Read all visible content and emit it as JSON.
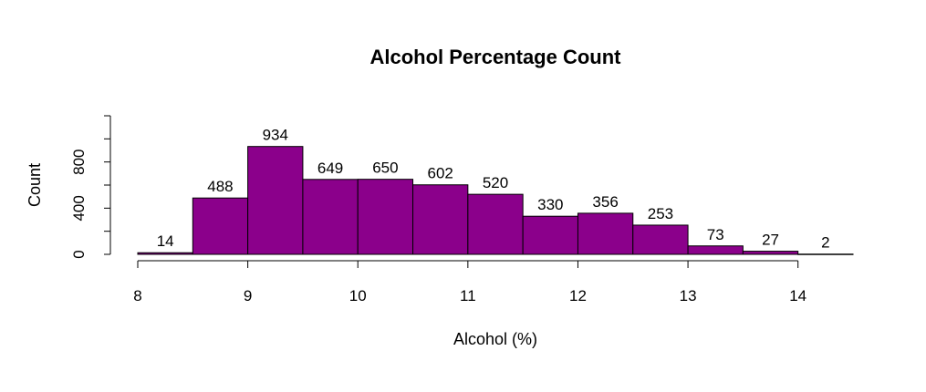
{
  "chart_data": {
    "type": "bar",
    "title": "Alcohol Percentage Count",
    "xlabel": "Alcohol (%)",
    "ylabel": "Count",
    "bin_edges": [
      8,
      8.5,
      9,
      9.5,
      10,
      10.5,
      11,
      11.5,
      12,
      12.5,
      13,
      13.5,
      14,
      14.5
    ],
    "values": [
      14,
      488,
      934,
      649,
      650,
      602,
      520,
      330,
      356,
      253,
      73,
      27,
      2
    ],
    "data_labels": [
      "14",
      "488",
      "934",
      "649",
      "650",
      "602",
      "520",
      "330",
      "356",
      "253",
      "73",
      "27",
      "2"
    ],
    "xticks": [
      "8",
      "9",
      "10",
      "11",
      "12",
      "13",
      "14"
    ],
    "yticks": [
      "0",
      "400",
      "800"
    ],
    "xlim": [
      8,
      14.5
    ],
    "ylim": [
      0,
      1200
    ],
    "bar_color": "#8B008B",
    "grid": false
  }
}
